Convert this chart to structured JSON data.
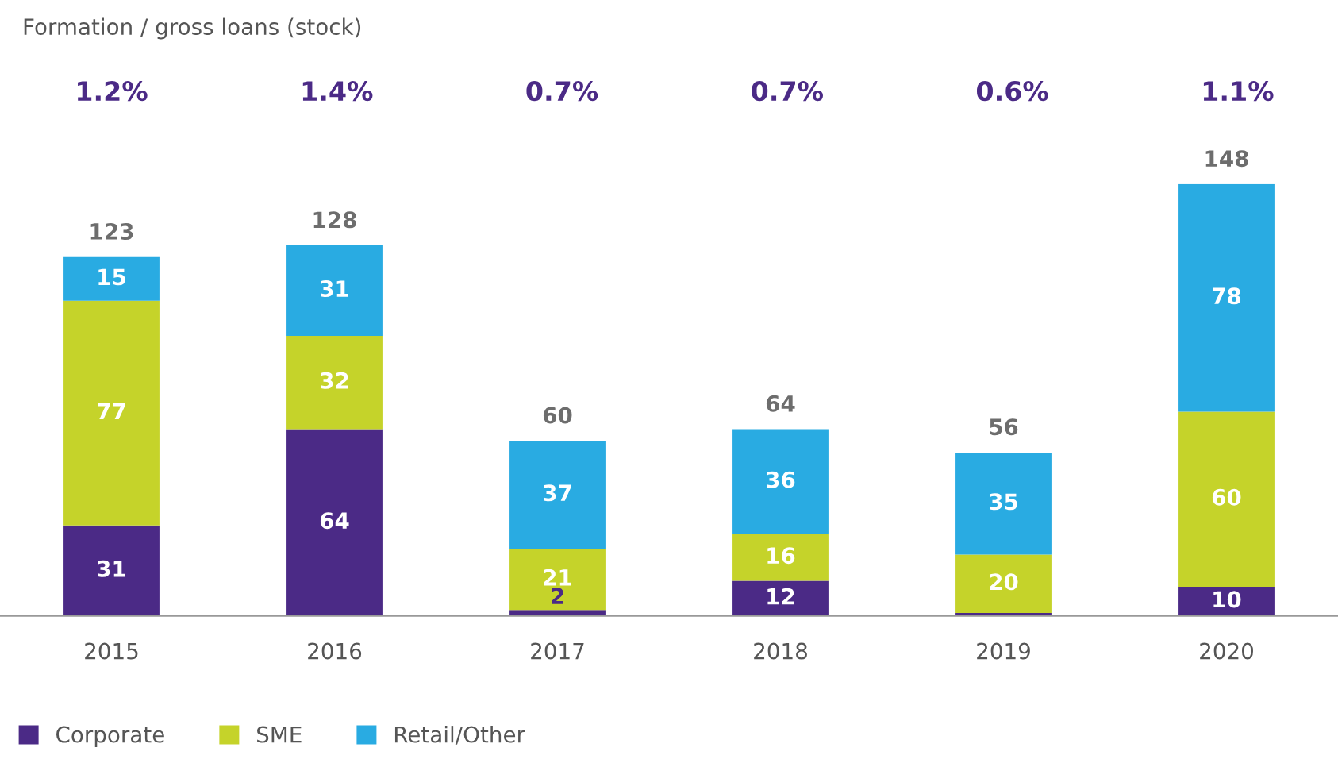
{
  "chart_data": {
    "type": "bar",
    "stacked": true,
    "title": "Formation / gross loans (stock)",
    "categories": [
      "2015",
      "2016",
      "2017",
      "2018",
      "2019",
      "2020"
    ],
    "series": [
      {
        "name": "Corporate",
        "color": "#4b2a86",
        "values": [
          31,
          64,
          2,
          12,
          1,
          10
        ],
        "value_labels": [
          "31",
          "64",
          "2",
          "12",
          null,
          "10"
        ]
      },
      {
        "name": "SME",
        "color": "#c5d32a",
        "values": [
          77,
          32,
          21,
          16,
          20,
          60
        ],
        "value_labels": [
          "77",
          "32",
          "21",
          "16",
          "20",
          "60"
        ]
      },
      {
        "name": "Retail/Other",
        "color": "#29abe2",
        "values": [
          15,
          31,
          37,
          36,
          35,
          78
        ],
        "value_labels": [
          "15",
          "31",
          "37",
          "36",
          "35",
          "78"
        ]
      }
    ],
    "totals": [
      "123",
      "128",
      "60",
      "64",
      "56",
      "148"
    ],
    "annotations": [
      "1.2%",
      "1.4%",
      "0.7%",
      "0.7%",
      "0.6%",
      "1.1%"
    ],
    "legend": "bottom left",
    "grid": false
  }
}
